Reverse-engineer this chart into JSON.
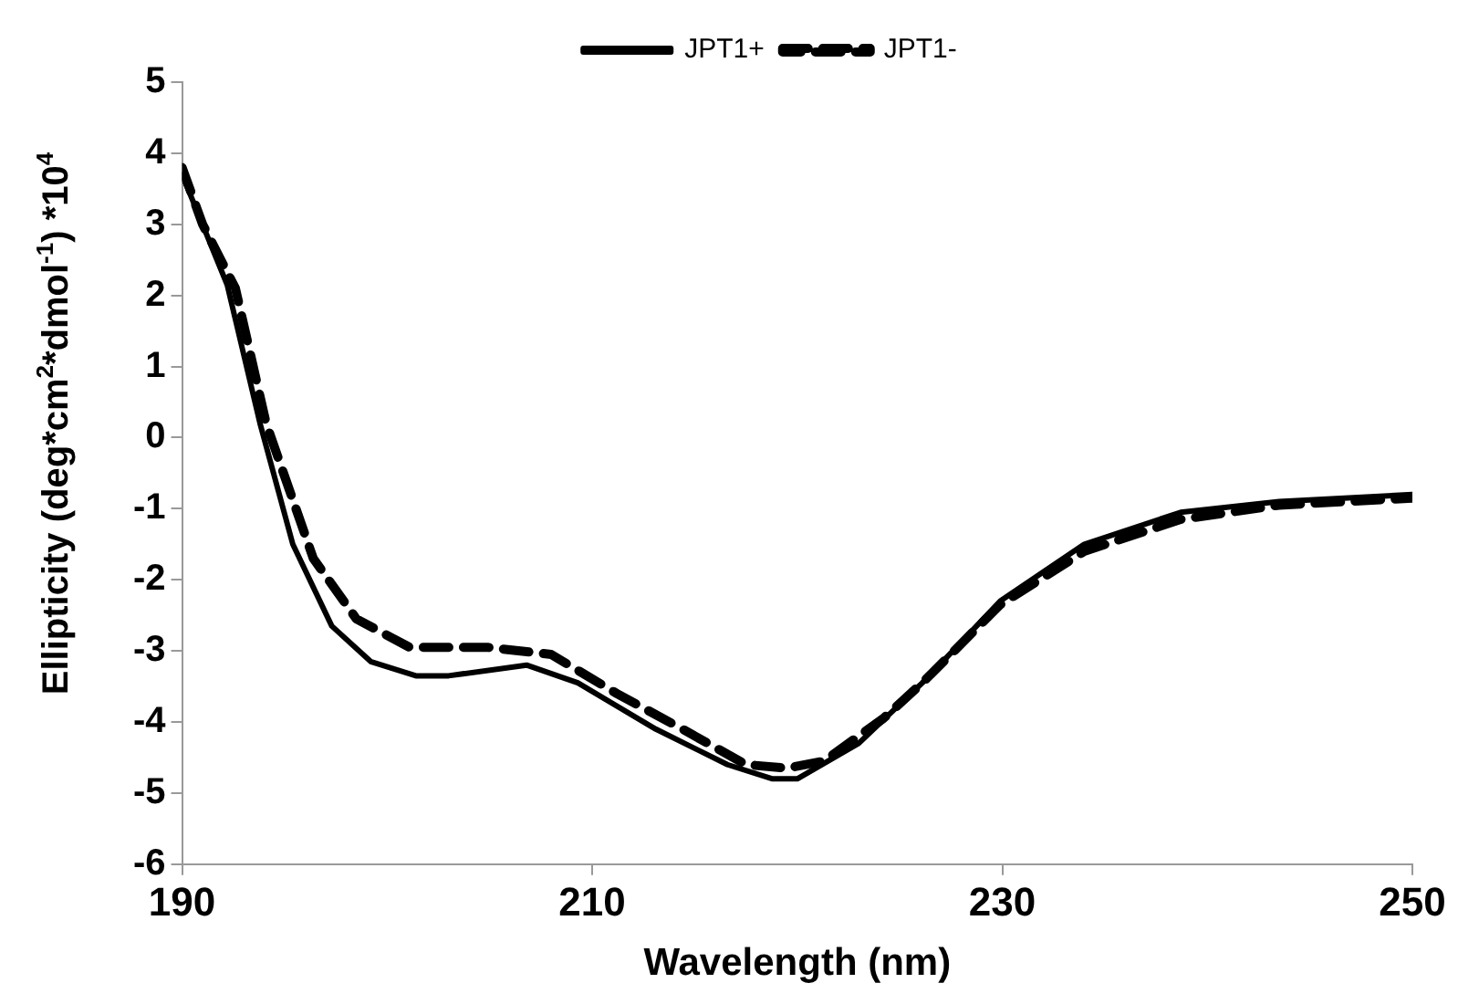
{
  "chart_data": {
    "type": "line",
    "xlabel": "Wavelength (nm)",
    "ylabel": "Ellipticity (deg*cm$^{2}$*dmol$^{-1}$) *10$^{4}$",
    "xlim": [
      190,
      250
    ],
    "xticks": [
      190,
      210,
      230,
      250
    ],
    "ylim": [
      -6,
      5
    ],
    "yticks": [
      -6,
      -5,
      -4,
      -3,
      -2,
      -1,
      0,
      1,
      2,
      3,
      4,
      5
    ],
    "grid": false,
    "legend": "top",
    "marker": "none",
    "series": [
      {
        "name": "JPT1+",
        "color": "#000000",
        "line_style": "solid",
        "x": [
          190,
          192.2,
          193.8,
          195.4,
          197.3,
          199.2,
          201.4,
          203,
          206.8,
          209.3,
          213.1,
          216.6,
          218.8,
          220,
          223,
          226.1,
          229.9,
          234,
          238.7,
          243.5,
          250
        ],
        "values": [
          3.7,
          2.15,
          0.2,
          -1.5,
          -2.65,
          -3.15,
          -3.35,
          -3.35,
          -3.2,
          -3.45,
          -4.1,
          -4.6,
          -4.8,
          -4.8,
          -4.3,
          -3.45,
          -2.3,
          -1.5,
          -1.05,
          -0.9,
          -0.8
        ]
      },
      {
        "name": "JPT1-",
        "color": "#000000",
        "line_style": "dashed",
        "x": [
          190,
          191,
          192.6,
          194.1,
          196.4,
          198.5,
          201.1,
          204.9,
          208,
          211.2,
          214.4,
          217.5,
          219.5,
          221.3,
          224.2,
          226.1,
          229.9,
          234,
          238.7,
          243.5,
          250
        ],
        "values": [
          3.8,
          3.0,
          2.1,
          0.2,
          -1.7,
          -2.55,
          -2.95,
          -2.95,
          -3.05,
          -3.6,
          -4.1,
          -4.6,
          -4.65,
          -4.55,
          -3.95,
          -3.45,
          -2.35,
          -1.6,
          -1.15,
          -0.95,
          -0.85
        ]
      }
    ]
  }
}
